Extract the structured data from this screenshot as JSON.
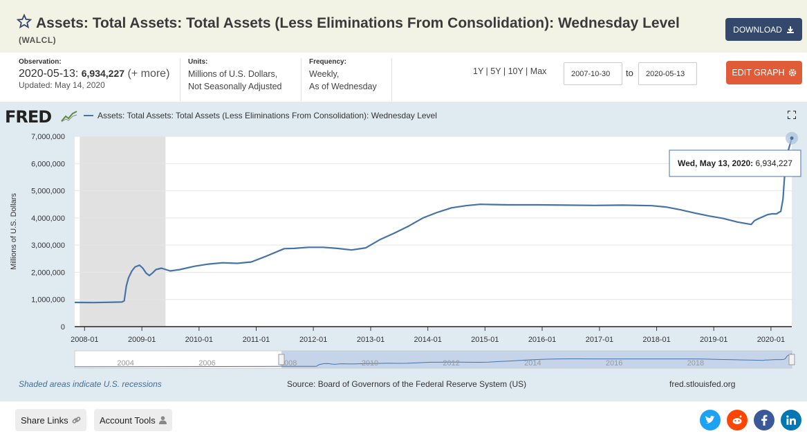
{
  "header": {
    "title": "Assets: Total Assets: Total Assets (Less Eliminations From Consolidation): Wednesday Level",
    "series_id": "(WALCL)",
    "download_label": "DOWNLOAD"
  },
  "meta": {
    "observation_label": "Observation:",
    "observation_date": "2020-05-13:",
    "observation_value": "6,934,227",
    "observation_more": "(+ more)",
    "updated": "Updated: May 14, 2020",
    "units_label": "Units:",
    "units_line1": "Millions of U.S. Dollars,",
    "units_line2": "Not Seasonally Adjusted",
    "frequency_label": "Frequency:",
    "frequency_line1": "Weekly,",
    "frequency_line2": "As of Wednesday"
  },
  "controls": {
    "range_1y": "1Y",
    "range_5y": "5Y",
    "range_10y": "10Y",
    "range_max": "Max",
    "start_date": "2007-10-30",
    "to_label": "to",
    "end_date": "2020-05-13",
    "edit_label": "EDIT GRAPH"
  },
  "chart_panel": {
    "logo": "FRED",
    "legend": "Assets: Total Assets: Total Assets (Less Eliminations From Consolidation): Wednesday Level",
    "tooltip_date": "Wed, May 13, 2020:",
    "tooltip_value": "6,934,227",
    "recession_note": "Shaded areas indicate U.S. recessions",
    "source": "Source: Board of Governors of the Federal Reserve System (US)",
    "site": "fred.stlouisfed.org"
  },
  "chart_data": {
    "type": "line",
    "title": "",
    "xlabel": "",
    "ylabel": "Millions of U.S. Dollars",
    "ylim": [
      0,
      7000000
    ],
    "xlim": [
      "2007-10-30",
      "2020-05-13"
    ],
    "yticks": [
      "0",
      "1,000,000",
      "2,000,000",
      "3,000,000",
      "4,000,000",
      "5,000,000",
      "6,000,000",
      "7,000,000"
    ],
    "xticks": [
      "2008-01",
      "2009-01",
      "2010-01",
      "2011-01",
      "2012-01",
      "2013-01",
      "2014-01",
      "2015-01",
      "2016-01",
      "2017-01",
      "2018-01",
      "2019-01",
      "2020-01"
    ],
    "grid": true,
    "recession": [
      "2007-12-01",
      "2009-06-01"
    ],
    "line_color": "#4572a7",
    "navigator_labels": [
      "2004",
      "2006",
      "2008",
      "2010",
      "2012",
      "2014",
      "2016",
      "2018"
    ],
    "series": [
      {
        "name": "Assets: Total Assets: Total Assets (Less Eliminations From Consolidation): Wednesday Level",
        "points": [
          [
            "2007-10-30",
            890000
          ],
          [
            "2008-03-01",
            885000
          ],
          [
            "2008-06-01",
            895000
          ],
          [
            "2008-08-27",
            905000
          ],
          [
            "2008-09-10",
            950000
          ],
          [
            "2008-09-24",
            1500000
          ],
          [
            "2008-10-08",
            1800000
          ],
          [
            "2008-10-29",
            2050000
          ],
          [
            "2008-11-19",
            2200000
          ],
          [
            "2008-12-17",
            2260000
          ],
          [
            "2009-01-07",
            2150000
          ],
          [
            "2009-01-28",
            1970000
          ],
          [
            "2009-02-18",
            1880000
          ],
          [
            "2009-03-11",
            1980000
          ],
          [
            "2009-04-01",
            2100000
          ],
          [
            "2009-05-06",
            2150000
          ],
          [
            "2009-06-03",
            2100000
          ],
          [
            "2009-07-01",
            2050000
          ],
          [
            "2009-09-01",
            2100000
          ],
          [
            "2009-12-01",
            2220000
          ],
          [
            "2010-03-01",
            2300000
          ],
          [
            "2010-06-01",
            2350000
          ],
          [
            "2010-09-01",
            2330000
          ],
          [
            "2010-12-01",
            2380000
          ],
          [
            "2011-03-01",
            2580000
          ],
          [
            "2011-06-29",
            2870000
          ],
          [
            "2011-09-01",
            2880000
          ],
          [
            "2011-12-01",
            2920000
          ],
          [
            "2012-03-01",
            2920000
          ],
          [
            "2012-06-01",
            2880000
          ],
          [
            "2012-09-01",
            2820000
          ],
          [
            "2012-12-01",
            2900000
          ],
          [
            "2013-03-01",
            3200000
          ],
          [
            "2013-06-01",
            3440000
          ],
          [
            "2013-09-01",
            3700000
          ],
          [
            "2013-12-01",
            4000000
          ],
          [
            "2014-03-01",
            4200000
          ],
          [
            "2014-06-01",
            4370000
          ],
          [
            "2014-09-01",
            4450000
          ],
          [
            "2014-12-01",
            4500000
          ],
          [
            "2015-03-01",
            4490000
          ],
          [
            "2015-06-01",
            4480000
          ],
          [
            "2015-12-01",
            4480000
          ],
          [
            "2016-06-01",
            4470000
          ],
          [
            "2016-12-01",
            4460000
          ],
          [
            "2017-06-01",
            4470000
          ],
          [
            "2017-12-01",
            4450000
          ],
          [
            "2018-03-01",
            4400000
          ],
          [
            "2018-06-01",
            4300000
          ],
          [
            "2018-09-01",
            4180000
          ],
          [
            "2018-12-01",
            4070000
          ],
          [
            "2019-03-01",
            3980000
          ],
          [
            "2019-06-01",
            3850000
          ],
          [
            "2019-08-28",
            3760000
          ],
          [
            "2019-09-18",
            3900000
          ],
          [
            "2019-10-16",
            3980000
          ],
          [
            "2019-11-13",
            4050000
          ],
          [
            "2019-12-11",
            4120000
          ],
          [
            "2020-01-08",
            4150000
          ],
          [
            "2020-02-05",
            4150000
          ],
          [
            "2020-03-04",
            4240000
          ],
          [
            "2020-03-18",
            4700000
          ],
          [
            "2020-03-25",
            5300000
          ],
          [
            "2020-04-01",
            5800000
          ],
          [
            "2020-04-15",
            6370000
          ],
          [
            "2020-04-29",
            6650000
          ],
          [
            "2020-05-13",
            6934227
          ]
        ]
      }
    ]
  }
}
